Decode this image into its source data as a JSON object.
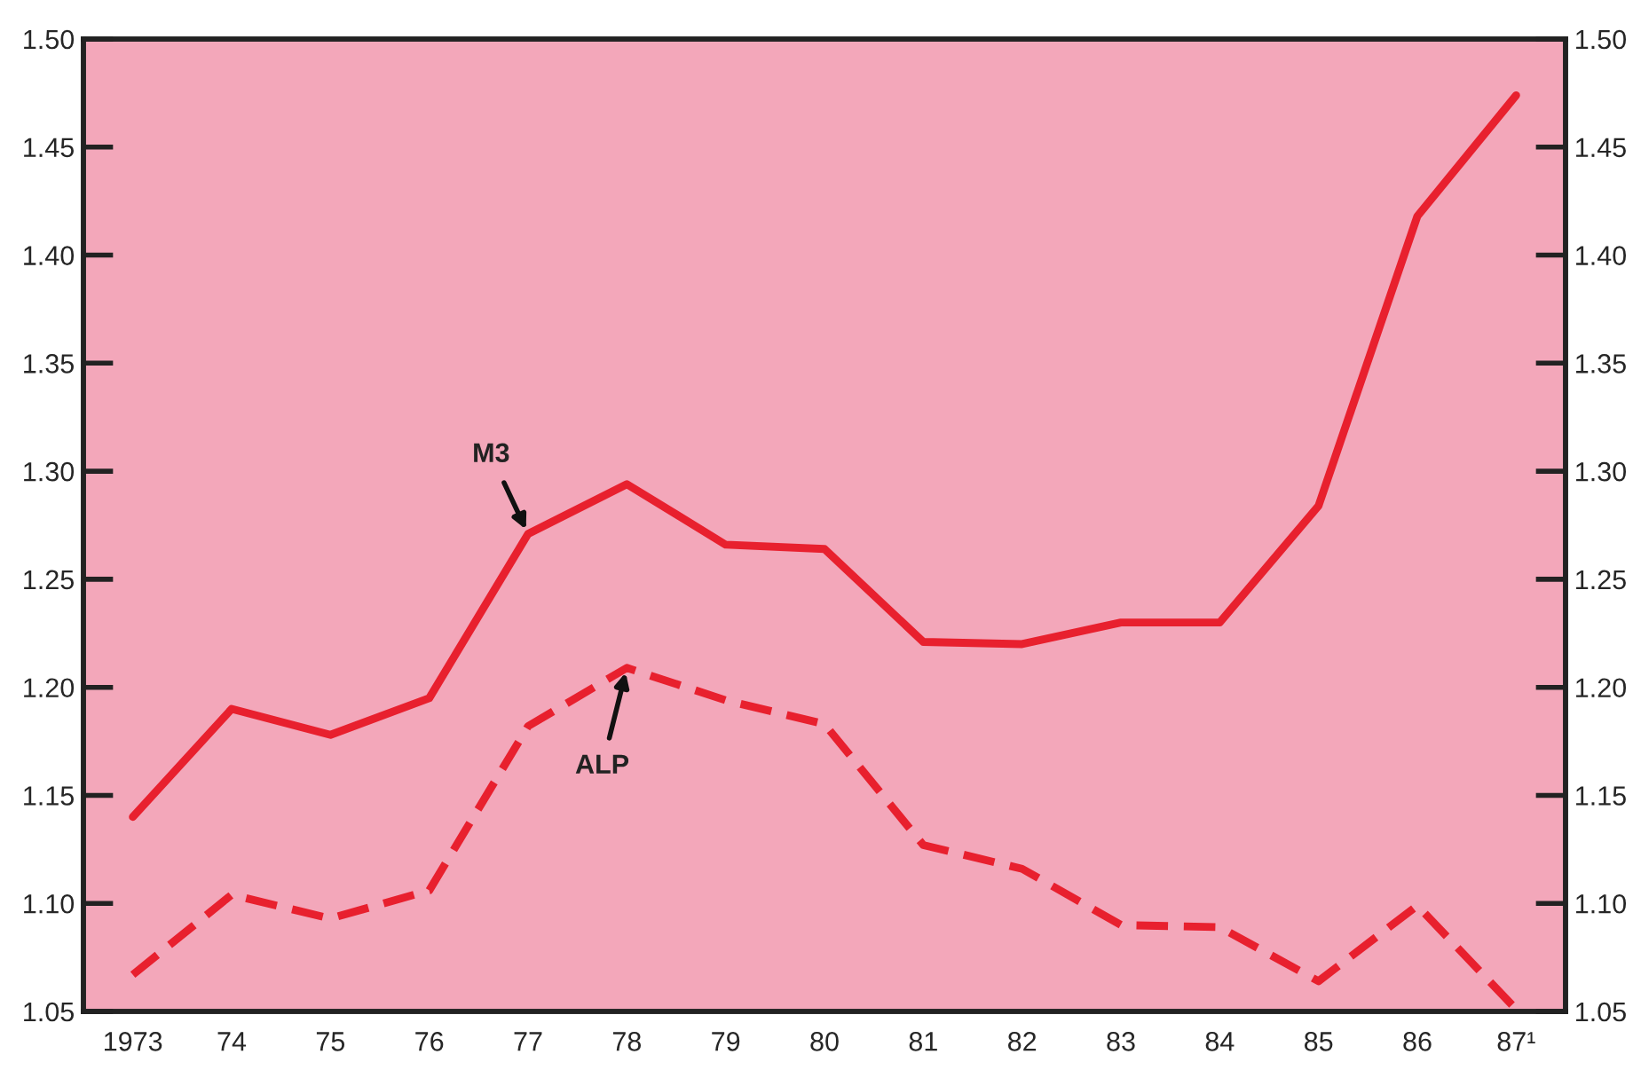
{
  "chart_data": {
    "type": "line",
    "categories": [
      "1973",
      "74",
      "75",
      "76",
      "77",
      "78",
      "79",
      "80",
      "81",
      "82",
      "83",
      "84",
      "85",
      "86",
      "87¹"
    ],
    "series": [
      {
        "color": "#e8202e",
        "line_style": "solid",
        "values": [
          1.14,
          1.19,
          1.178,
          1.195,
          1.271,
          1.294,
          1.266,
          1.264,
          1.221,
          1.22,
          1.23,
          1.23,
          1.284,
          1.418,
          1.474
        ]
      },
      {
        "color": "#e8202e",
        "line_style": "dashed",
        "values": [
          1.067,
          1.104,
          1.093,
          1.106,
          1.182,
          1.209,
          1.194,
          1.183,
          1.127,
          1.116,
          1.09,
          1.089,
          1.064,
          1.099,
          1.051
        ]
      }
    ],
    "ylim": [
      1.05,
      1.5
    ],
    "yticks": [
      {
        "value": 1.05,
        "label": "1.05"
      },
      {
        "value": 1.1,
        "label": "1.10"
      },
      {
        "value": 1.15,
        "label": "1.15"
      },
      {
        "value": 1.2,
        "label": "1.20"
      },
      {
        "value": 1.25,
        "label": "1.25"
      },
      {
        "value": 1.3,
        "label": "1.30"
      },
      {
        "value": 1.35,
        "label": "1.35"
      },
      {
        "value": 1.4,
        "label": "1.40"
      },
      {
        "value": 1.45,
        "label": "1.45"
      },
      {
        "value": 1.5,
        "label": "1.50"
      }
    ],
    "y2lim": [
      1.05,
      1.5
    ],
    "y2ticks": [
      {
        "value": 1.05,
        "label": "1.05"
      },
      {
        "value": 1.1,
        "label": "1.10"
      },
      {
        "value": 1.15,
        "label": "1.15"
      },
      {
        "value": 1.2,
        "label": "1.20"
      },
      {
        "value": 1.25,
        "label": "1.25"
      },
      {
        "value": 1.3,
        "label": "1.30"
      },
      {
        "value": 1.35,
        "label": "1.35"
      },
      {
        "value": 1.4,
        "label": "1.40"
      },
      {
        "value": 1.45,
        "label": "1.45"
      },
      {
        "value": 1.5,
        "label": "1.50"
      }
    ],
    "annotations": [
      {
        "text": "M3",
        "x": "77",
        "y": 1.271
      },
      {
        "text": "ALP",
        "x": "78",
        "y": 1.209
      }
    ],
    "grid": false,
    "marker": "none"
  }
}
